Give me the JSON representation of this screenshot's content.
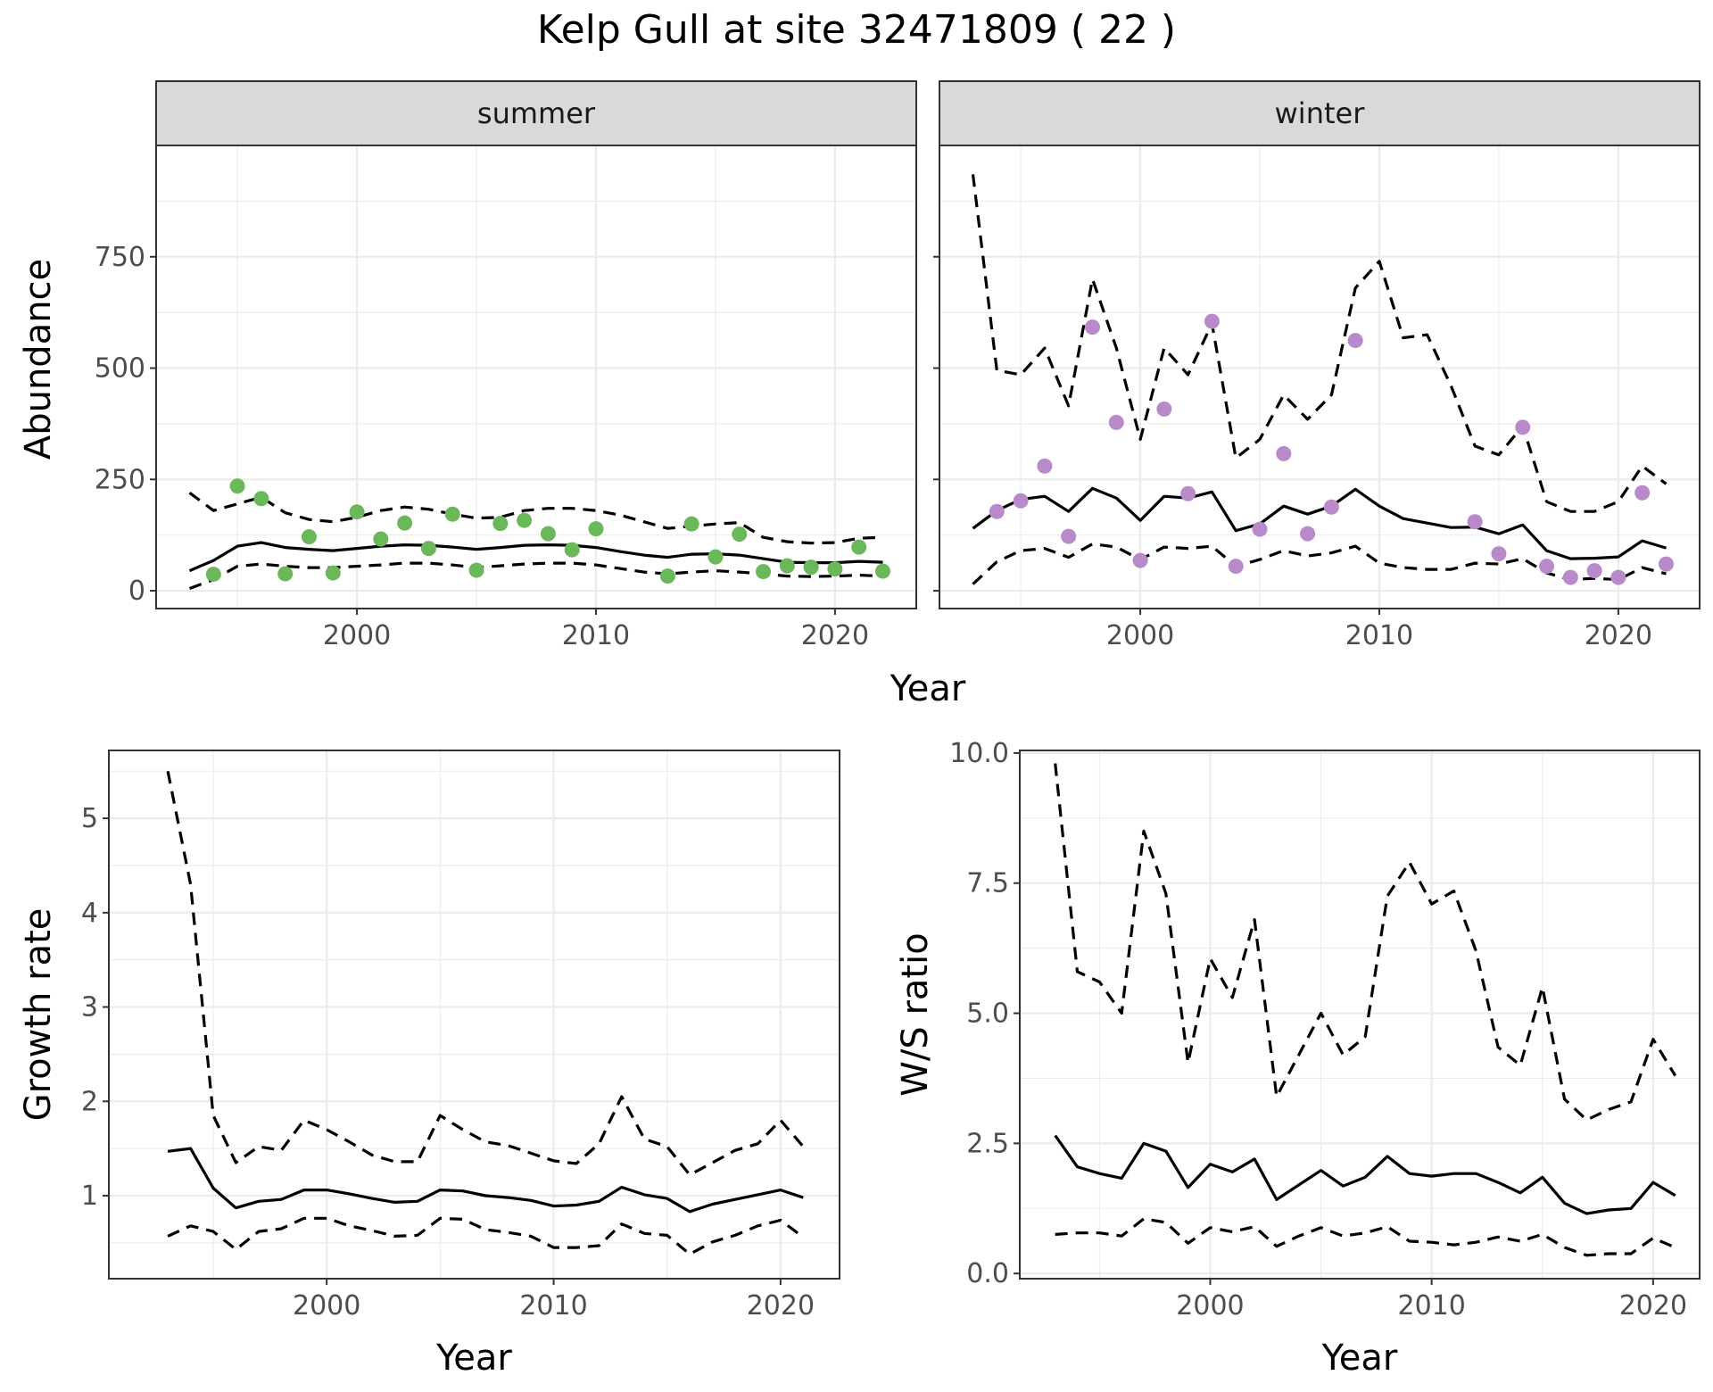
{
  "title": "Kelp Gull at site 32471809 ( 22 )",
  "colors": {
    "summer_points": "#6bb85a",
    "winter_points": "#b98ac9",
    "lines": "#000000"
  },
  "chart_data": [
    {
      "id": "summer",
      "type": "line",
      "facet_label": "summer",
      "ylabel": "Abundance",
      "xlabel": "",
      "xlim": [
        1991.6,
        2023.4
      ],
      "ylim": [
        -40,
        1000
      ],
      "x_ticks": [
        2000,
        2010,
        2020
      ],
      "y_ticks": [
        0,
        250,
        500,
        750
      ],
      "y_tick_labels": [
        "0",
        "250",
        "500",
        "750"
      ],
      "point_color": "#6bb85a",
      "points": {
        "x": [
          1994,
          1995,
          1996,
          1997,
          1998,
          1999,
          2000,
          2001,
          2002,
          2003,
          2004,
          2005,
          2006,
          2007,
          2008,
          2009,
          2010,
          2013,
          2014,
          2015,
          2016,
          2017,
          2018,
          2019,
          2020,
          2021,
          2022
        ],
        "y": [
          37,
          235,
          207,
          38,
          121,
          40,
          177,
          116,
          152,
          95,
          172,
          46,
          151,
          158,
          128,
          92,
          139,
          33,
          150,
          76,
          127,
          43,
          56,
          53,
          49,
          98,
          44
        ]
      },
      "series": [
        {
          "style": "solid",
          "x": [
            1993,
            1994,
            1995,
            1996,
            1997,
            1998,
            1999,
            2000,
            2001,
            2002,
            2003,
            2004,
            2005,
            2006,
            2007,
            2008,
            2009,
            2010,
            2011,
            2012,
            2013,
            2014,
            2015,
            2016,
            2017,
            2018,
            2019,
            2020,
            2021,
            2022
          ],
          "y": [
            45,
            68,
            100,
            108,
            97,
            93,
            90,
            95,
            100,
            103,
            102,
            98,
            93,
            97,
            102,
            103,
            102,
            97,
            88,
            80,
            75,
            82,
            83,
            80,
            72,
            64,
            63,
            63,
            66,
            64
          ]
        },
        {
          "style": "dashed",
          "x": [
            1993,
            1994,
            1995,
            1996,
            1997,
            1998,
            1999,
            2000,
            2001,
            2002,
            2003,
            2004,
            2005,
            2006,
            2007,
            2008,
            2009,
            2010,
            2011,
            2012,
            2013,
            2014,
            2015,
            2016,
            2017,
            2018,
            2019,
            2020,
            2021,
            2022
          ],
          "y": [
            220,
            180,
            195,
            210,
            175,
            160,
            155,
            165,
            180,
            188,
            183,
            172,
            163,
            165,
            180,
            185,
            185,
            180,
            170,
            155,
            140,
            145,
            150,
            153,
            120,
            110,
            107,
            108,
            118,
            120
          ]
        },
        {
          "style": "dashed",
          "x": [
            1993,
            1994,
            1995,
            1996,
            1997,
            1998,
            1999,
            2000,
            2001,
            2002,
            2003,
            2004,
            2005,
            2006,
            2007,
            2008,
            2009,
            2010,
            2011,
            2012,
            2013,
            2014,
            2015,
            2016,
            2017,
            2018,
            2019,
            2020,
            2021,
            2022
          ],
          "y": [
            5,
            25,
            55,
            60,
            55,
            52,
            52,
            55,
            58,
            62,
            62,
            58,
            52,
            56,
            60,
            62,
            62,
            58,
            50,
            42,
            38,
            42,
            45,
            42,
            38,
            33,
            32,
            33,
            35,
            33
          ]
        }
      ]
    },
    {
      "id": "winter",
      "type": "line",
      "facet_label": "winter",
      "ylabel": "",
      "xlabel": "",
      "xlim": [
        1991.6,
        2023.4
      ],
      "ylim": [
        -40,
        1000
      ],
      "x_ticks": [
        2000,
        2010,
        2020
      ],
      "y_ticks": [
        0,
        250,
        500,
        750
      ],
      "y_tick_labels": [],
      "point_color": "#b98ac9",
      "points": {
        "x": [
          1994,
          1995,
          1996,
          1997,
          1998,
          1999,
          2000,
          2001,
          2002,
          2003,
          2004,
          2005,
          2006,
          2007,
          2008,
          2009,
          2014,
          2015,
          2016,
          2017,
          2018,
          2019,
          2020,
          2021,
          2022
        ],
        "y": [
          178,
          202,
          280,
          122,
          592,
          378,
          68,
          408,
          218,
          605,
          55,
          138,
          308,
          128,
          188,
          562,
          155,
          83,
          367,
          55,
          30,
          45,
          30,
          220,
          60
        ]
      },
      "series": [
        {
          "style": "solid",
          "x": [
            1993,
            1994,
            1995,
            1996,
            1997,
            1998,
            1999,
            2000,
            2001,
            2002,
            2003,
            2004,
            2005,
            2006,
            2007,
            2008,
            2009,
            2010,
            2011,
            2012,
            2013,
            2014,
            2015,
            2016,
            2017,
            2018,
            2019,
            2020,
            2021,
            2022
          ],
          "y": [
            140,
            180,
            205,
            212,
            178,
            230,
            208,
            158,
            212,
            208,
            222,
            135,
            150,
            190,
            172,
            190,
            228,
            190,
            162,
            152,
            142,
            143,
            128,
            148,
            90,
            72,
            73,
            76,
            112,
            96
          ]
        },
        {
          "style": "dashed",
          "x": [
            1993,
            1994,
            1995,
            1996,
            1997,
            1998,
            1999,
            2000,
            2001,
            2002,
            2003,
            2004,
            2005,
            2006,
            2007,
            2008,
            2009,
            2010,
            2011,
            2012,
            2013,
            2014,
            2015,
            2016,
            2017,
            2018,
            2019,
            2020,
            2021,
            2022
          ],
          "y": [
            935,
            495,
            485,
            545,
            415,
            700,
            545,
            340,
            545,
            485,
            600,
            298,
            340,
            440,
            385,
            440,
            680,
            740,
            568,
            575,
            460,
            325,
            305,
            370,
            200,
            178,
            178,
            200,
            280,
            240
          ]
        },
        {
          "style": "dashed",
          "x": [
            1993,
            1994,
            1995,
            1996,
            1997,
            1998,
            1999,
            2000,
            2001,
            2002,
            2003,
            2004,
            2005,
            2006,
            2007,
            2008,
            2009,
            2010,
            2011,
            2012,
            2013,
            2014,
            2015,
            2016,
            2017,
            2018,
            2019,
            2020,
            2021,
            2022
          ],
          "y": [
            15,
            65,
            90,
            95,
            75,
            105,
            98,
            70,
            98,
            95,
            100,
            55,
            70,
            90,
            78,
            85,
            100,
            62,
            52,
            48,
            48,
            62,
            60,
            72,
            40,
            25,
            28,
            25,
            52,
            38
          ]
        }
      ]
    },
    {
      "id": "growth",
      "type": "line",
      "ylabel": "Growth rate",
      "xlabel": "Year",
      "xlim": [
        1990.4,
        2022.6
      ],
      "ylim": [
        0.12,
        5.72
      ],
      "x_ticks": [
        2000,
        2010,
        2020
      ],
      "y_ticks": [
        1,
        2,
        3,
        4,
        5
      ],
      "y_tick_labels": [
        "1",
        "2",
        "3",
        "4",
        "5"
      ],
      "series": [
        {
          "style": "solid",
          "x": [
            1993,
            1994,
            1995,
            1996,
            1997,
            1998,
            1999,
            2000,
            2001,
            2002,
            2003,
            2004,
            2005,
            2006,
            2007,
            2008,
            2009,
            2010,
            2011,
            2012,
            2013,
            2014,
            2015,
            2016,
            2017,
            2018,
            2019,
            2020,
            2021
          ],
          "y": [
            1.47,
            1.5,
            1.08,
            0.87,
            0.94,
            0.96,
            1.06,
            1.06,
            1.02,
            0.97,
            0.93,
            0.94,
            1.06,
            1.05,
            1.0,
            0.98,
            0.95,
            0.89,
            0.9,
            0.94,
            1.09,
            1.01,
            0.97,
            0.83,
            0.91,
            0.96,
            1.01,
            1.06,
            0.98
          ]
        },
        {
          "style": "dashed",
          "x": [
            1993,
            1994,
            1995,
            1996,
            1997,
            1998,
            1999,
            2000,
            2001,
            2002,
            2003,
            2004,
            2005,
            2006,
            2007,
            2008,
            2009,
            2010,
            2011,
            2012,
            2013,
            2014,
            2015,
            2016,
            2017,
            2018,
            2019,
            2020,
            2021
          ],
          "y": [
            5.5,
            4.3,
            1.85,
            1.35,
            1.52,
            1.48,
            1.8,
            1.7,
            1.57,
            1.43,
            1.36,
            1.36,
            1.85,
            1.7,
            1.57,
            1.53,
            1.45,
            1.37,
            1.34,
            1.55,
            2.05,
            1.6,
            1.52,
            1.22,
            1.35,
            1.48,
            1.55,
            1.8,
            1.52
          ]
        },
        {
          "style": "dashed",
          "x": [
            1993,
            1994,
            1995,
            1996,
            1997,
            1998,
            1999,
            2000,
            2001,
            2002,
            2003,
            2004,
            2005,
            2006,
            2007,
            2008,
            2009,
            2010,
            2011,
            2012,
            2013,
            2014,
            2015,
            2016,
            2017,
            2018,
            2019,
            2020,
            2021
          ],
          "y": [
            0.57,
            0.68,
            0.62,
            0.43,
            0.62,
            0.65,
            0.76,
            0.76,
            0.68,
            0.63,
            0.57,
            0.58,
            0.76,
            0.75,
            0.64,
            0.61,
            0.57,
            0.45,
            0.45,
            0.47,
            0.7,
            0.6,
            0.58,
            0.38,
            0.51,
            0.58,
            0.68,
            0.74,
            0.56
          ]
        }
      ]
    },
    {
      "id": "ratio",
      "type": "line",
      "ylabel": "W/S ratio",
      "xlabel": "Year",
      "xlim": [
        1991.4,
        2022.1
      ],
      "ylim": [
        -0.1,
        10.05
      ],
      "x_ticks": [
        2000,
        2010,
        2020
      ],
      "y_ticks": [
        0,
        2.5,
        5,
        7.5,
        10
      ],
      "y_tick_labels": [
        "0.0",
        "2.5",
        "5.0",
        "7.5",
        "10.0"
      ],
      "series": [
        {
          "style": "solid",
          "x": [
            1993,
            1994,
            1995,
            1996,
            1997,
            1998,
            1999,
            2000,
            2001,
            2002,
            2003,
            2004,
            2005,
            2006,
            2007,
            2008,
            2009,
            2010,
            2011,
            2012,
            2013,
            2014,
            2015,
            2016,
            2017,
            2018,
            2019,
            2020,
            2021
          ],
          "y": [
            2.65,
            2.05,
            1.92,
            1.83,
            2.5,
            2.35,
            1.65,
            2.1,
            1.95,
            2.2,
            1.42,
            1.7,
            1.98,
            1.68,
            1.85,
            2.25,
            1.92,
            1.87,
            1.92,
            1.92,
            1.75,
            1.55,
            1.85,
            1.35,
            1.15,
            1.22,
            1.25,
            1.75,
            1.5
          ]
        },
        {
          "style": "dashed",
          "x": [
            1993,
            1994,
            1995,
            1996,
            1997,
            1998,
            1999,
            2000,
            2001,
            2002,
            2003,
            2004,
            2005,
            2006,
            2007,
            2008,
            2009,
            2010,
            2011,
            2012,
            2013,
            2014,
            2015,
            2016,
            2017,
            2018,
            2019,
            2020,
            2021
          ],
          "y": [
            9.8,
            5.8,
            5.6,
            5.0,
            8.5,
            7.3,
            4.05,
            6.05,
            5.3,
            6.8,
            3.4,
            4.2,
            5.0,
            4.2,
            4.55,
            7.25,
            7.9,
            7.1,
            7.35,
            6.2,
            4.35,
            4.0,
            5.5,
            3.35,
            2.95,
            3.15,
            3.3,
            4.5,
            3.8
          ]
        },
        {
          "style": "dashed",
          "x": [
            1993,
            1994,
            1995,
            1996,
            1997,
            1998,
            1999,
            2000,
            2001,
            2002,
            2003,
            2004,
            2005,
            2006,
            2007,
            2008,
            2009,
            2010,
            2011,
            2012,
            2013,
            2014,
            2015,
            2016,
            2017,
            2018,
            2019,
            2020,
            2021
          ],
          "y": [
            0.75,
            0.78,
            0.78,
            0.72,
            1.05,
            0.98,
            0.58,
            0.88,
            0.8,
            0.9,
            0.52,
            0.72,
            0.88,
            0.72,
            0.78,
            0.9,
            0.62,
            0.6,
            0.55,
            0.6,
            0.7,
            0.62,
            0.75,
            0.5,
            0.35,
            0.38,
            0.38,
            0.68,
            0.5
          ]
        }
      ]
    }
  ],
  "shared_labels": {
    "top_xlabel": "Year"
  }
}
